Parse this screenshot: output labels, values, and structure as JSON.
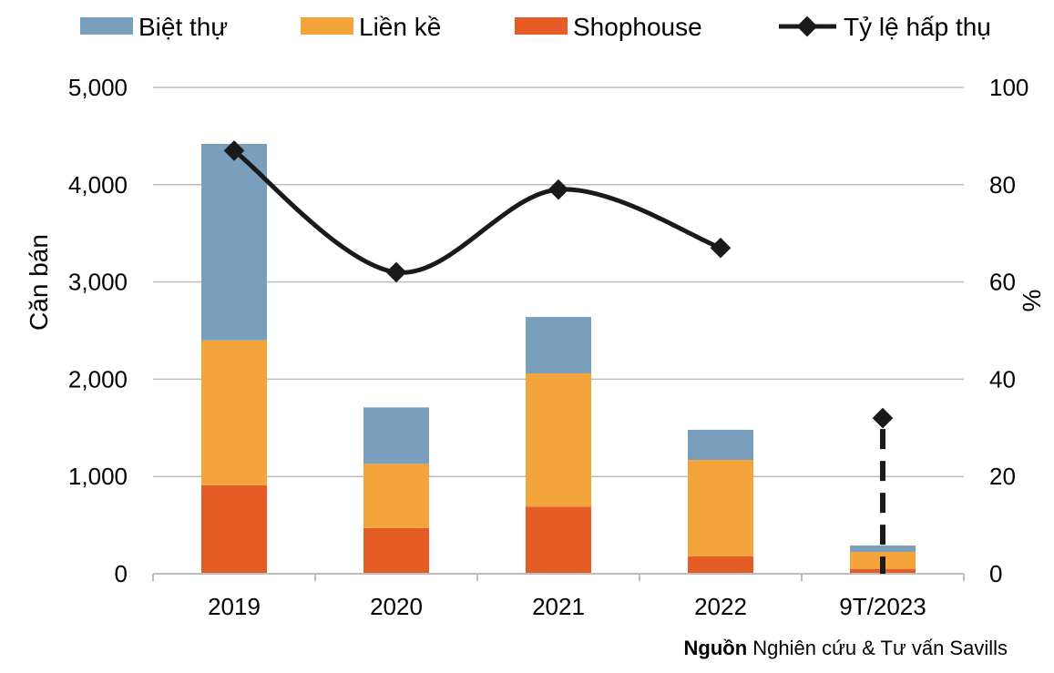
{
  "chart_data": {
    "type": "bar",
    "stacked": true,
    "categories": [
      "2019",
      "2020",
      "2021",
      "2022",
      "9T/2023"
    ],
    "series": [
      {
        "name": "Shophouse",
        "color": "#E65C27",
        "values": [
          910,
          470,
          690,
          180,
          50
        ]
      },
      {
        "name": "Liền kề",
        "color": "#F3A43B",
        "values": [
          1490,
          660,
          1370,
          990,
          175
        ]
      },
      {
        "name": "Biệt thự",
        "color": "#7A9FBD",
        "values": [
          2020,
          580,
          580,
          310,
          65
        ]
      }
    ],
    "line_series": {
      "name": "Tỷ lệ hấp thụ",
      "color": "#1A1A1A",
      "axis": "right",
      "values": [
        87,
        62,
        79,
        67,
        32
      ]
    },
    "legend_order": [
      "Biệt thự",
      "Liền kề",
      "Shophouse",
      "Tỷ lệ hấp thụ"
    ],
    "legend_position": "top",
    "y_left": {
      "label": "Căn bán",
      "min": 0,
      "max": 5000,
      "ticks": [
        "0",
        "1,000",
        "2,000",
        "3,000",
        "4,000",
        "5,000"
      ]
    },
    "y_right": {
      "label": "%",
      "min": 0,
      "max": 100,
      "ticks": [
        "0",
        "20",
        "40",
        "60",
        "80",
        "100"
      ]
    },
    "grid": true
  },
  "source": {
    "label": "Nguồn",
    "text": " Nghiên cứu & Tư vấn Savills"
  }
}
